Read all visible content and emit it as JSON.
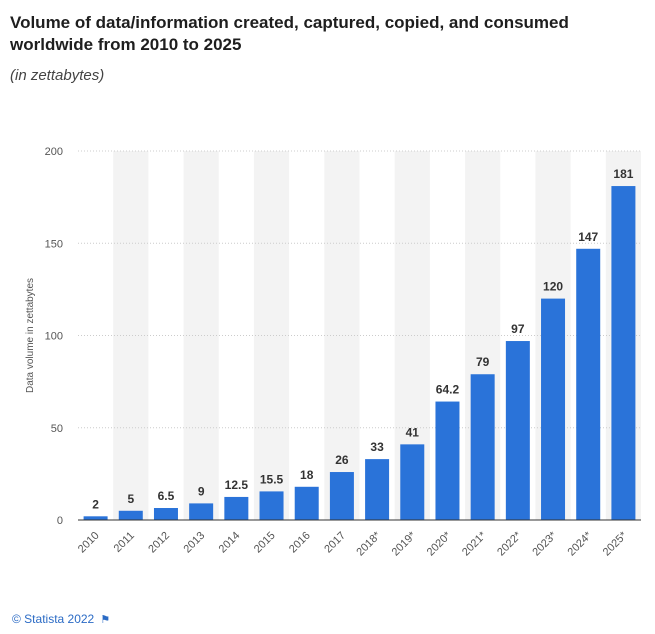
{
  "header": {
    "title": "Volume of data/information created, captured, copied, and consumed worldwide from 2010 to 2025",
    "subtitle": "(in zettabytes)"
  },
  "footer": {
    "copyright": "© Statista 2022",
    "flag_icon": "flag-icon"
  },
  "colors": {
    "bar": "#2a73d9",
    "band": "#f3f3f3",
    "grid": "#cccccc",
    "text": "#333333",
    "link": "#2b6bc5"
  },
  "chart_data": {
    "type": "bar",
    "title": "Volume of data/information created, captured, copied, and consumed worldwide from 2010 to 2025",
    "subtitle": "(in zettabytes)",
    "xlabel": "",
    "ylabel": "Data volume in zettabytes",
    "ylim": [
      0,
      200
    ],
    "yticks": [
      0,
      50,
      100,
      150,
      200
    ],
    "grid": true,
    "categories": [
      "2010",
      "2011",
      "2012",
      "2013",
      "2014",
      "2015",
      "2016",
      "2017",
      "2018*",
      "2019*",
      "2020*",
      "2021*",
      "2022*",
      "2023*",
      "2024*",
      "2025*"
    ],
    "values": [
      2,
      5,
      6.5,
      9,
      12.5,
      15.5,
      18,
      26,
      33,
      41,
      64.2,
      79,
      97,
      120,
      147,
      181
    ],
    "value_labels": [
      "2",
      "5",
      "6.5",
      "9",
      "12.5",
      "15.5",
      "18",
      "26",
      "33",
      "41",
      "64.2",
      "79",
      "97",
      "120",
      "147",
      "181"
    ]
  }
}
